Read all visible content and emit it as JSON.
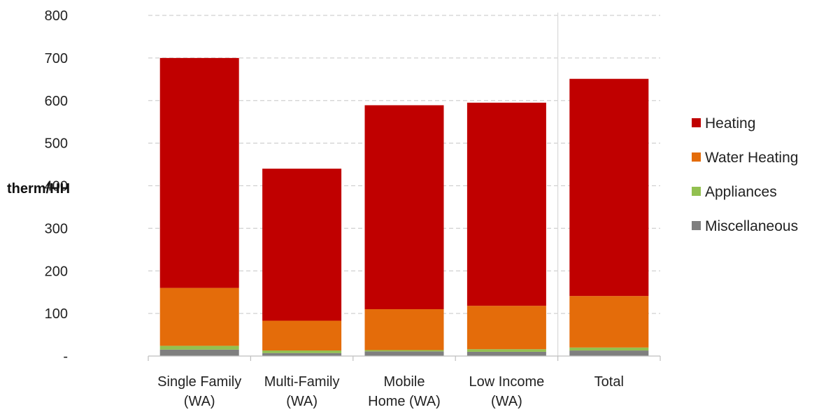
{
  "chart_data": {
    "type": "bar",
    "stacked": true,
    "title": "",
    "xlabel": "",
    "ylabel": "therm/HH",
    "ylim": [
      0,
      800
    ],
    "yticks": [
      0,
      100,
      200,
      300,
      400,
      500,
      600,
      700,
      800
    ],
    "ytick_labels": [
      "-",
      "100",
      "200",
      "300",
      "400",
      "500",
      "600",
      "700",
      "800"
    ],
    "grid": "horizontal dashed",
    "legend_position": "right",
    "categories": [
      [
        "Single Family",
        "(WA)"
      ],
      [
        "Multi-Family",
        "(WA)"
      ],
      [
        "Mobile",
        "Home (WA)"
      ],
      [
        "Low Income",
        "(WA)"
      ],
      [
        "Total"
      ]
    ],
    "series": [
      {
        "name": "Miscellaneous",
        "color": "#7f7f7f",
        "values": [
          15,
          7,
          11,
          10,
          13
        ]
      },
      {
        "name": "Appliances",
        "color": "#92c050",
        "values": [
          9,
          6,
          3,
          6,
          7
        ]
      },
      {
        "name": "Water Heating",
        "color": "#e46c0a",
        "values": [
          136,
          70,
          96,
          102,
          121
        ]
      },
      {
        "name": "Heating",
        "color": "#c00000",
        "values": [
          540,
          357,
          479,
          477,
          510
        ]
      }
    ],
    "legend_order": [
      "Heating",
      "Water Heating",
      "Appliances",
      "Miscellaneous"
    ],
    "separator_before_category": 4
  }
}
